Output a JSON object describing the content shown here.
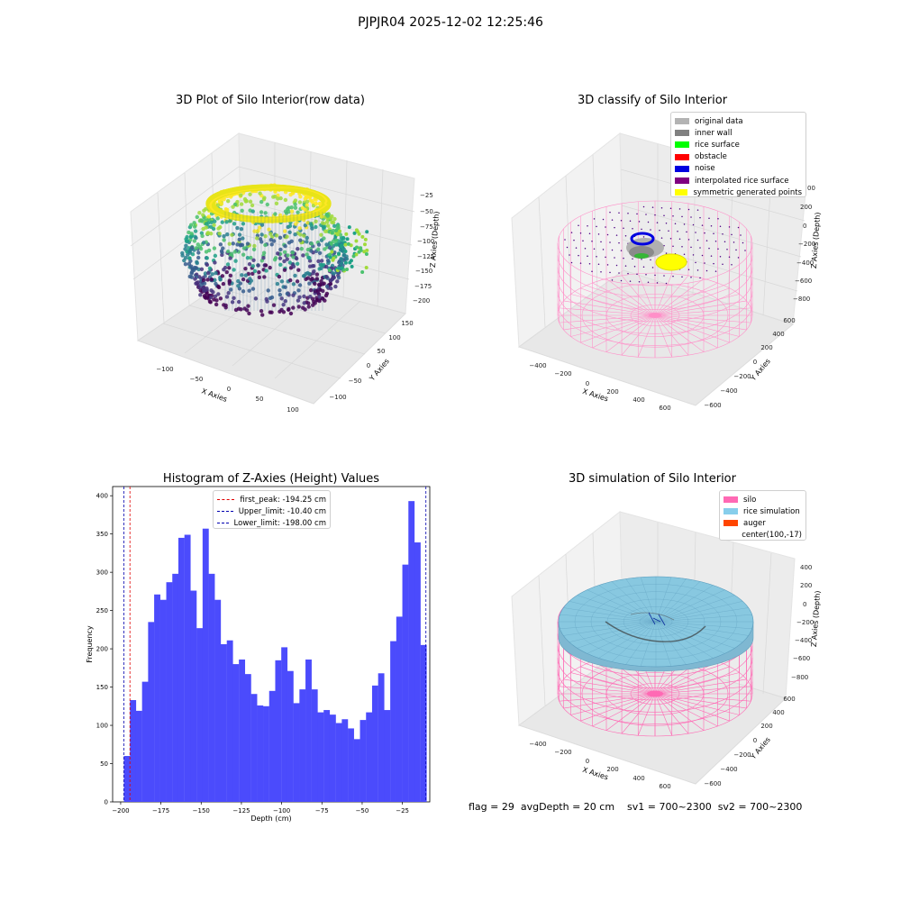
{
  "suptitle": "PJPJR04 2025-12-02 12:25:46",
  "panels": {
    "raw": {
      "title": "3D Plot of Silo Interior(row data)",
      "xlabel": "X Axies",
      "ylabel": "Y Axies",
      "zlabel": "Z Axies (Depth)",
      "xticks": [
        "−100",
        "−50",
        "0",
        "50",
        "100"
      ],
      "yticks": [
        "−100",
        "−50",
        "0",
        "50",
        "100",
        "150"
      ],
      "zticks": [
        "−25",
        "−50",
        "−75",
        "−100",
        "−125",
        "−150",
        "−175",
        "−200"
      ]
    },
    "classify": {
      "title": "3D classify of Silo Interior",
      "xlabel": "X Axies",
      "ylabel": "Y Axies",
      "zlabel": "Z Axies (Depth)",
      "xticks": [
        "−400",
        "−200",
        "0",
        "200",
        "400",
        "600"
      ],
      "yticks": [
        "−600",
        "−400",
        "−200",
        "0",
        "200",
        "400",
        "600"
      ],
      "zticks": [
        "200",
        "0",
        "−200",
        "−400",
        "−600",
        "−800"
      ],
      "ztick_cut": "00",
      "legend": [
        {
          "label": "original data",
          "color": "#b3b3b3"
        },
        {
          "label": "inner wall",
          "color": "#808080"
        },
        {
          "label": "rice surface",
          "color": "#00ff00"
        },
        {
          "label": "obstacle",
          "color": "#ff0000"
        },
        {
          "label": "noise",
          "color": "#0000e0"
        },
        {
          "label": "interpolated rice surface",
          "color": "#800080"
        },
        {
          "label": "symmetric generated points",
          "color": "#ffff00"
        }
      ]
    },
    "simulation": {
      "title": "3D simulation of Silo Interior",
      "xlabel": "X Axies",
      "ylabel": "Y Axies",
      "zlabel": "Z Axies (Depth)",
      "xticks": [
        "−400",
        "−200",
        "0",
        "200",
        "400",
        "600"
      ],
      "yticks": [
        "−600",
        "−400",
        "−200",
        "0",
        "200",
        "400",
        "600"
      ],
      "zticks": [
        "400",
        "200",
        "0",
        "−200",
        "−400",
        "−600",
        "−800"
      ],
      "legend": [
        {
          "label": "silo",
          "color": "#ff69b4"
        },
        {
          "label": "rice simulation",
          "color": "#87ceeb"
        },
        {
          "label": "auger",
          "color": "#ff4500"
        },
        {
          "label": "center(100,-17)",
          "color": ""
        }
      ]
    }
  },
  "footer": "flag = 29  avgDepth = 20 cm    sv1 = 700~2300  sv2 = 700~2300",
  "chart_data": [
    {
      "type": "bar",
      "title": "Histogram of Z-Axies (Height) Values",
      "xlabel": "Depth (cm)",
      "ylabel": "Frequency",
      "bin_start": -198.0,
      "bin_width": 3.76,
      "values": [
        60,
        133,
        119,
        157,
        235,
        271,
        264,
        287,
        298,
        345,
        349,
        276,
        227,
        357,
        298,
        264,
        206,
        211,
        180,
        186,
        167,
        141,
        126,
        125,
        145,
        185,
        202,
        171,
        129,
        147,
        186,
        147,
        117,
        120,
        114,
        103,
        108,
        96,
        82,
        107,
        117,
        152,
        168,
        120,
        210,
        242,
        310,
        393,
        339,
        205
      ],
      "xlim": [
        -205,
        -8
      ],
      "ylim": [
        0,
        412
      ],
      "xticks": [
        -200,
        -175,
        -150,
        -125,
        -100,
        -75,
        -50,
        -25
      ],
      "yticks": [
        0,
        50,
        100,
        150,
        200,
        250,
        300,
        350,
        400
      ],
      "bar_color": "#4b4bfc",
      "vlines": [
        {
          "label": "first_peak: -194.25 cm",
          "x": -194.25,
          "color": "#e00000"
        },
        {
          "label": "Upper_limit: -10.40 cm",
          "x": -10.4,
          "color": "#0000b0"
        },
        {
          "label": "Lower_limit: -198.00 cm",
          "x": -198.0,
          "color": "#0000b0"
        }
      ],
      "legend": "top-center",
      "grid": false
    }
  ]
}
